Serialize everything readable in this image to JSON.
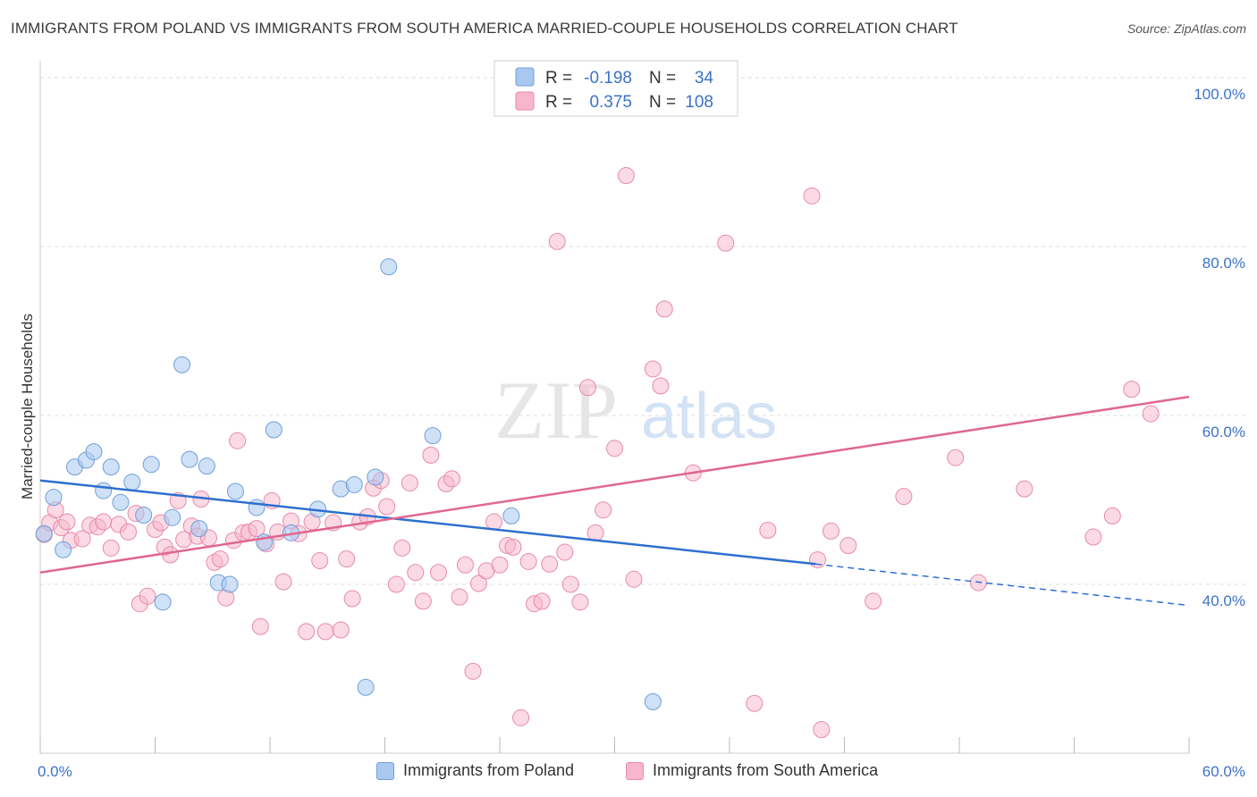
{
  "title": "IMMIGRANTS FROM POLAND VS IMMIGRANTS FROM SOUTH AMERICA MARRIED-COUPLE HOUSEHOLDS CORRELATION CHART",
  "source": "Source: ZipAtlas.com",
  "watermark": {
    "zip": "ZIP",
    "atlas": "atlas"
  },
  "colors": {
    "poland_fill": "#a8c8f0",
    "poland_stroke": "#6f9fd8",
    "poland_line": "#2d6fcf",
    "sa_fill": "#f7b6cb",
    "sa_stroke": "#e88aa8",
    "sa_line": "#e06790",
    "axis_label": "#3b73c8",
    "grid": "#dddddd"
  },
  "legend": {
    "rows": [
      {
        "r_label": "R =",
        "r_value": "-0.198",
        "n_label": "N =",
        "n_value": "34"
      },
      {
        "r_label": "R =",
        "r_value": "0.375",
        "n_label": "N =",
        "n_value": "108"
      }
    ]
  },
  "bottom_legend": {
    "poland": "Immigrants from Poland",
    "south_america": "Immigrants from South America"
  },
  "chart_data": {
    "type": "scatter",
    "ylabel": "Married-couple Households",
    "xlabel": "",
    "xlim": [
      0,
      60
    ],
    "ylim": [
      20,
      102
    ],
    "x_tick_labels": {
      "min": "0.0%",
      "max": "60.0%"
    },
    "y_tick_labels": [
      {
        "value": 40,
        "label": "40.0%"
      },
      {
        "value": 60,
        "label": "60.0%"
      },
      {
        "value": 80,
        "label": "80.0%"
      },
      {
        "value": 100,
        "label": "100.0%"
      }
    ],
    "grid": true,
    "legend_position": "top-center",
    "series": [
      {
        "name": "Immigrants from Poland",
        "r": -0.198,
        "n": 34,
        "trend": {
          "x0": 0,
          "y0": 52.3,
          "x1": 40.5,
          "y1": 42.4,
          "dash_to_x": 60,
          "dash_to_y": 37.5
        },
        "points": [
          [
            0.2,
            46.0
          ],
          [
            0.7,
            50.3
          ],
          [
            1.2,
            44.1
          ],
          [
            1.8,
            53.9
          ],
          [
            2.4,
            54.7
          ],
          [
            2.8,
            55.7
          ],
          [
            3.3,
            51.1
          ],
          [
            3.7,
            53.9
          ],
          [
            4.2,
            49.7
          ],
          [
            4.8,
            52.1
          ],
          [
            5.4,
            48.2
          ],
          [
            5.8,
            54.2
          ],
          [
            6.4,
            37.9
          ],
          [
            6.9,
            47.9
          ],
          [
            7.4,
            66.0
          ],
          [
            7.8,
            54.8
          ],
          [
            8.3,
            46.6
          ],
          [
            8.7,
            54.0
          ],
          [
            9.3,
            40.2
          ],
          [
            9.9,
            40.0
          ],
          [
            10.2,
            51.0
          ],
          [
            11.3,
            49.1
          ],
          [
            11.7,
            45.0
          ],
          [
            12.2,
            58.3
          ],
          [
            13.1,
            46.1
          ],
          [
            14.5,
            48.9
          ],
          [
            15.7,
            51.3
          ],
          [
            16.4,
            51.8
          ],
          [
            17.0,
            27.8
          ],
          [
            17.5,
            52.7
          ],
          [
            18.2,
            77.6
          ],
          [
            20.5,
            57.6
          ],
          [
            24.6,
            48.1
          ],
          [
            32.0,
            26.1
          ]
        ]
      },
      {
        "name": "Immigrants from South America",
        "r": 0.375,
        "n": 108,
        "trend": {
          "x0": 0,
          "y0": 41.4,
          "x1": 60,
          "y1": 62.2
        },
        "points": [
          [
            0.2,
            45.9
          ],
          [
            0.5,
            47.3
          ],
          [
            0.8,
            48.8
          ],
          [
            1.1,
            46.7
          ],
          [
            1.4,
            47.4
          ],
          [
            1.6,
            45.2
          ],
          [
            2.2,
            45.4
          ],
          [
            2.6,
            47.0
          ],
          [
            3.0,
            46.8
          ],
          [
            3.3,
            47.4
          ],
          [
            3.7,
            44.3
          ],
          [
            4.1,
            47.1
          ],
          [
            4.6,
            46.2
          ],
          [
            5.0,
            48.4
          ],
          [
            5.2,
            37.7
          ],
          [
            5.6,
            38.6
          ],
          [
            6.0,
            46.5
          ],
          [
            6.3,
            47.3
          ],
          [
            6.5,
            44.4
          ],
          [
            6.8,
            43.5
          ],
          [
            7.2,
            49.9
          ],
          [
            7.5,
            45.3
          ],
          [
            7.9,
            46.9
          ],
          [
            8.2,
            45.7
          ],
          [
            8.4,
            50.1
          ],
          [
            8.8,
            45.5
          ],
          [
            9.1,
            42.6
          ],
          [
            9.4,
            43.0
          ],
          [
            9.7,
            38.4
          ],
          [
            10.1,
            45.2
          ],
          [
            10.3,
            57.0
          ],
          [
            10.6,
            46.1
          ],
          [
            10.9,
            46.2
          ],
          [
            11.3,
            46.6
          ],
          [
            11.5,
            35.0
          ],
          [
            11.8,
            44.8
          ],
          [
            12.1,
            49.9
          ],
          [
            12.4,
            46.2
          ],
          [
            12.7,
            40.3
          ],
          [
            13.1,
            47.5
          ],
          [
            13.5,
            46.0
          ],
          [
            13.9,
            34.4
          ],
          [
            14.2,
            47.4
          ],
          [
            14.6,
            42.8
          ],
          [
            14.9,
            34.4
          ],
          [
            15.3,
            47.3
          ],
          [
            15.7,
            34.6
          ],
          [
            16.0,
            43.0
          ],
          [
            16.3,
            38.3
          ],
          [
            16.7,
            47.4
          ],
          [
            17.1,
            48.0
          ],
          [
            17.4,
            51.4
          ],
          [
            17.8,
            52.3
          ],
          [
            18.1,
            49.2
          ],
          [
            18.6,
            40.0
          ],
          [
            18.9,
            44.3
          ],
          [
            19.3,
            52.0
          ],
          [
            19.6,
            41.4
          ],
          [
            20.0,
            38.0
          ],
          [
            20.4,
            55.3
          ],
          [
            20.8,
            41.4
          ],
          [
            21.2,
            51.9
          ],
          [
            21.5,
            52.5
          ],
          [
            21.9,
            38.5
          ],
          [
            22.2,
            42.3
          ],
          [
            22.6,
            29.7
          ],
          [
            22.9,
            40.1
          ],
          [
            23.3,
            41.6
          ],
          [
            23.7,
            47.4
          ],
          [
            24.0,
            42.3
          ],
          [
            24.4,
            44.6
          ],
          [
            24.7,
            44.4
          ],
          [
            25.1,
            24.2
          ],
          [
            25.5,
            42.7
          ],
          [
            25.8,
            37.7
          ],
          [
            26.2,
            38.0
          ],
          [
            26.6,
            42.4
          ],
          [
            27.0,
            80.6
          ],
          [
            27.4,
            43.8
          ],
          [
            27.7,
            40.0
          ],
          [
            28.2,
            37.9
          ],
          [
            28.6,
            63.3
          ],
          [
            29.0,
            46.1
          ],
          [
            29.4,
            48.8
          ],
          [
            30.0,
            56.1
          ],
          [
            30.6,
            88.4
          ],
          [
            31.0,
            40.6
          ],
          [
            32.0,
            65.5
          ],
          [
            32.4,
            63.5
          ],
          [
            32.6,
            72.6
          ],
          [
            34.1,
            53.2
          ],
          [
            35.8,
            80.4
          ],
          [
            37.3,
            25.9
          ],
          [
            38.0,
            46.4
          ],
          [
            40.3,
            86.0
          ],
          [
            40.6,
            42.9
          ],
          [
            40.8,
            22.8
          ],
          [
            41.3,
            46.3
          ],
          [
            42.2,
            44.6
          ],
          [
            43.5,
            38.0
          ],
          [
            45.1,
            50.4
          ],
          [
            47.8,
            55.0
          ],
          [
            49.0,
            40.2
          ],
          [
            51.4,
            51.3
          ],
          [
            55.0,
            45.6
          ],
          [
            56.0,
            48.1
          ],
          [
            57.0,
            63.1
          ],
          [
            58.0,
            60.2
          ]
        ]
      }
    ]
  }
}
